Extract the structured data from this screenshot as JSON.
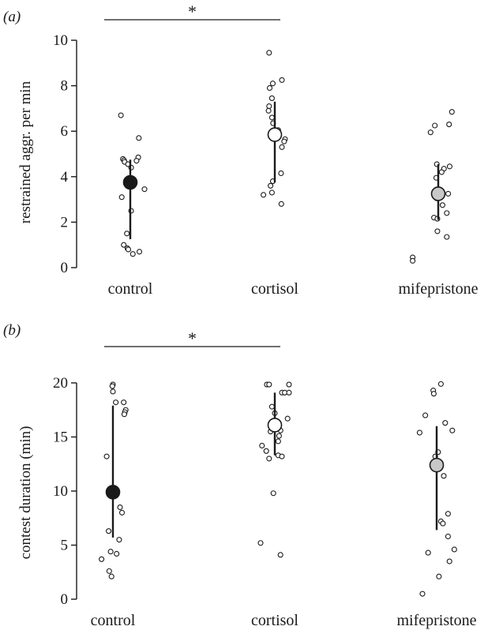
{
  "chart_data": [
    {
      "type": "scatter",
      "panel_label": "(a)",
      "ylabel": "restrained aggr. per min",
      "xlabel": "",
      "categories": [
        "control",
        "cortisol",
        "mifepristone"
      ],
      "y_ticks": [
        0,
        2,
        4,
        6,
        8,
        10
      ],
      "ylim": [
        0,
        10
      ],
      "grid": false,
      "significance": {
        "from": "control",
        "to": "cortisol",
        "label": "*"
      },
      "summary": [
        {
          "category": "control",
          "mean": 3.75,
          "low": 1.25,
          "high": 4.75,
          "fill": "#1a1a1a"
        },
        {
          "category": "cortisol",
          "mean": 5.85,
          "low": 3.75,
          "high": 7.3,
          "fill": "#ffffff"
        },
        {
          "category": "mifepristone",
          "mean": 3.25,
          "low": 2.1,
          "high": 4.55,
          "fill": "#c8c8c8"
        }
      ],
      "points": [
        {
          "category": "control",
          "dx": -0.33,
          "y": 6.7
        },
        {
          "category": "control",
          "dx": 0.3,
          "y": 5.7
        },
        {
          "category": "control",
          "dx": -0.26,
          "y": 4.78
        },
        {
          "category": "control",
          "dx": -0.22,
          "y": 4.72
        },
        {
          "category": "control",
          "dx": -0.2,
          "y": 4.65
        },
        {
          "category": "control",
          "dx": 0.28,
          "y": 4.85
        },
        {
          "category": "control",
          "dx": 0.22,
          "y": 4.7
        },
        {
          "category": "control",
          "dx": -0.08,
          "y": 4.55
        },
        {
          "category": "control",
          "dx": 0.03,
          "y": 4.4
        },
        {
          "category": "control",
          "dx": -0.05,
          "y": 3.85
        },
        {
          "category": "control",
          "dx": 0.5,
          "y": 3.45
        },
        {
          "category": "control",
          "dx": -0.3,
          "y": 3.1
        },
        {
          "category": "control",
          "dx": 0.03,
          "y": 2.5
        },
        {
          "category": "control",
          "dx": -0.12,
          "y": 1.5
        },
        {
          "category": "control",
          "dx": -0.23,
          "y": 1.0
        },
        {
          "category": "control",
          "dx": -0.1,
          "y": 0.85
        },
        {
          "category": "control",
          "dx": -0.07,
          "y": 0.8
        },
        {
          "category": "control",
          "dx": 0.09,
          "y": 0.6
        },
        {
          "category": "control",
          "dx": 0.32,
          "y": 0.7
        },
        {
          "category": "cortisol",
          "dx": -0.2,
          "y": 9.45
        },
        {
          "category": "cortisol",
          "dx": 0.25,
          "y": 8.25
        },
        {
          "category": "cortisol",
          "dx": -0.07,
          "y": 8.1
        },
        {
          "category": "cortisol",
          "dx": -0.18,
          "y": 7.9
        },
        {
          "category": "cortisol",
          "dx": -0.1,
          "y": 7.45
        },
        {
          "category": "cortisol",
          "dx": -0.2,
          "y": 7.1
        },
        {
          "category": "cortisol",
          "dx": -0.22,
          "y": 6.9
        },
        {
          "category": "cortisol",
          "dx": -0.1,
          "y": 6.6
        },
        {
          "category": "cortisol",
          "dx": -0.06,
          "y": 6.35
        },
        {
          "category": "cortisol",
          "dx": 0.12,
          "y": 6.05
        },
        {
          "category": "cortisol",
          "dx": 0.36,
          "y": 5.65
        },
        {
          "category": "cortisol",
          "dx": 0.33,
          "y": 5.55
        },
        {
          "category": "cortisol",
          "dx": 0.25,
          "y": 5.3
        },
        {
          "category": "cortisol",
          "dx": 0.22,
          "y": 4.15
        },
        {
          "category": "cortisol",
          "dx": -0.07,
          "y": 3.8
        },
        {
          "category": "cortisol",
          "dx": -0.15,
          "y": 3.6
        },
        {
          "category": "cortisol",
          "dx": -0.1,
          "y": 3.3
        },
        {
          "category": "cortisol",
          "dx": -0.4,
          "y": 3.2
        },
        {
          "category": "cortisol",
          "dx": 0.23,
          "y": 2.8
        },
        {
          "category": "mifepristone",
          "dx": 0.48,
          "y": 6.85
        },
        {
          "category": "mifepristone",
          "dx": 0.38,
          "y": 6.3
        },
        {
          "category": "mifepristone",
          "dx": -0.12,
          "y": 6.25
        },
        {
          "category": "mifepristone",
          "dx": -0.27,
          "y": 5.95
        },
        {
          "category": "mifepristone",
          "dx": -0.05,
          "y": 4.55
        },
        {
          "category": "mifepristone",
          "dx": 0.4,
          "y": 4.45
        },
        {
          "category": "mifepristone",
          "dx": 0.2,
          "y": 4.35
        },
        {
          "category": "mifepristone",
          "dx": 0.12,
          "y": 4.2
        },
        {
          "category": "mifepristone",
          "dx": -0.07,
          "y": 3.95
        },
        {
          "category": "mifepristone",
          "dx": 0.35,
          "y": 3.25
        },
        {
          "category": "mifepristone",
          "dx": -0.06,
          "y": 3.05
        },
        {
          "category": "mifepristone",
          "dx": 0.15,
          "y": 2.75
        },
        {
          "category": "mifepristone",
          "dx": 0.3,
          "y": 2.4
        },
        {
          "category": "mifepristone",
          "dx": -0.15,
          "y": 2.2
        },
        {
          "category": "mifepristone",
          "dx": -0.03,
          "y": 2.15
        },
        {
          "category": "mifepristone",
          "dx": -0.03,
          "y": 1.6
        },
        {
          "category": "mifepristone",
          "dx": 0.3,
          "y": 1.35
        },
        {
          "category": "mifepristone",
          "dx": -0.9,
          "y": 0.45
        },
        {
          "category": "mifepristone",
          "dx": -0.9,
          "y": 0.3
        }
      ]
    },
    {
      "type": "scatter",
      "panel_label": "(b)",
      "ylabel": "contest duration (min)",
      "xlabel": "",
      "categories": [
        "control",
        "cortisol",
        "mifepristone"
      ],
      "y_ticks": [
        0,
        5,
        10,
        15,
        20
      ],
      "ylim": [
        0,
        20
      ],
      "grid": false,
      "significance": {
        "from": "control",
        "to": "cortisol",
        "label": "*"
      },
      "summary": [
        {
          "category": "control",
          "mean": 9.9,
          "low": 5.7,
          "high": 17.9,
          "fill": "#1a1a1a"
        },
        {
          "category": "cortisol",
          "mean": 16.1,
          "low": 13.3,
          "high": 19.1,
          "fill": "#ffffff"
        },
        {
          "category": "mifepristone",
          "mean": 12.4,
          "low": 6.4,
          "high": 16.0,
          "fill": "#c8c8c8"
        }
      ],
      "points": [
        {
          "category": "control",
          "dx": 0.0,
          "y": 19.85
        },
        {
          "category": "control",
          "dx": -0.02,
          "y": 19.7
        },
        {
          "category": "control",
          "dx": 0.0,
          "y": 19.2
        },
        {
          "category": "control",
          "dx": 0.1,
          "y": 18.2
        },
        {
          "category": "control",
          "dx": 0.38,
          "y": 18.2
        },
        {
          "category": "control",
          "dx": 0.45,
          "y": 17.5
        },
        {
          "category": "control",
          "dx": 0.42,
          "y": 17.3
        },
        {
          "category": "control",
          "dx": 0.4,
          "y": 17.1
        },
        {
          "category": "control",
          "dx": -0.22,
          "y": 13.2
        },
        {
          "category": "control",
          "dx": 0.25,
          "y": 8.5
        },
        {
          "category": "control",
          "dx": 0.32,
          "y": 8.0
        },
        {
          "category": "control",
          "dx": -0.15,
          "y": 6.3
        },
        {
          "category": "control",
          "dx": 0.22,
          "y": 5.5
        },
        {
          "category": "control",
          "dx": -0.08,
          "y": 4.4
        },
        {
          "category": "control",
          "dx": 0.13,
          "y": 4.2
        },
        {
          "category": "control",
          "dx": -0.4,
          "y": 3.7
        },
        {
          "category": "control",
          "dx": -0.13,
          "y": 2.6
        },
        {
          "category": "control",
          "dx": -0.05,
          "y": 2.1
        },
        {
          "category": "cortisol",
          "dx": -0.28,
          "y": 19.85
        },
        {
          "category": "cortisol",
          "dx": -0.2,
          "y": 19.85
        },
        {
          "category": "cortisol",
          "dx": 0.5,
          "y": 19.85
        },
        {
          "category": "cortisol",
          "dx": 0.25,
          "y": 19.1
        },
        {
          "category": "cortisol",
          "dx": 0.35,
          "y": 19.1
        },
        {
          "category": "cortisol",
          "dx": 0.5,
          "y": 19.1
        },
        {
          "category": "cortisol",
          "dx": -0.1,
          "y": 17.8
        },
        {
          "category": "cortisol",
          "dx": 0.0,
          "y": 17.2
        },
        {
          "category": "cortisol",
          "dx": 0.45,
          "y": 16.7
        },
        {
          "category": "cortisol",
          "dx": 0.2,
          "y": 15.6
        },
        {
          "category": "cortisol",
          "dx": -0.15,
          "y": 15.5
        },
        {
          "category": "cortisol",
          "dx": 0.15,
          "y": 15.1
        },
        {
          "category": "cortisol",
          "dx": 0.12,
          "y": 14.6
        },
        {
          "category": "cortisol",
          "dx": -0.45,
          "y": 14.2
        },
        {
          "category": "cortisol",
          "dx": -0.3,
          "y": 13.7
        },
        {
          "category": "cortisol",
          "dx": 0.12,
          "y": 13.3
        },
        {
          "category": "cortisol",
          "dx": 0.25,
          "y": 13.2
        },
        {
          "category": "cortisol",
          "dx": -0.2,
          "y": 13.0
        },
        {
          "category": "cortisol",
          "dx": -0.05,
          "y": 9.8
        },
        {
          "category": "cortisol",
          "dx": -0.5,
          "y": 5.2
        },
        {
          "category": "cortisol",
          "dx": 0.2,
          "y": 4.1
        },
        {
          "category": "mifepristone",
          "dx": 0.15,
          "y": 19.9
        },
        {
          "category": "mifepristone",
          "dx": -0.12,
          "y": 19.3
        },
        {
          "category": "mifepristone",
          "dx": -0.1,
          "y": 19.0
        },
        {
          "category": "mifepristone",
          "dx": -0.4,
          "y": 17.0
        },
        {
          "category": "mifepristone",
          "dx": 0.3,
          "y": 16.3
        },
        {
          "category": "mifepristone",
          "dx": 0.55,
          "y": 15.6
        },
        {
          "category": "mifepristone",
          "dx": -0.6,
          "y": 15.4
        },
        {
          "category": "mifepristone",
          "dx": 0.05,
          "y": 13.6
        },
        {
          "category": "mifepristone",
          "dx": -0.05,
          "y": 13.2
        },
        {
          "category": "mifepristone",
          "dx": 0.0,
          "y": 12.4
        },
        {
          "category": "mifepristone",
          "dx": 0.25,
          "y": 11.4
        },
        {
          "category": "mifepristone",
          "dx": 0.4,
          "y": 7.9
        },
        {
          "category": "mifepristone",
          "dx": 0.15,
          "y": 7.2
        },
        {
          "category": "mifepristone",
          "dx": 0.22,
          "y": 7.0
        },
        {
          "category": "mifepristone",
          "dx": 0.4,
          "y": 5.8
        },
        {
          "category": "mifepristone",
          "dx": 0.62,
          "y": 4.6
        },
        {
          "category": "mifepristone",
          "dx": -0.3,
          "y": 4.3
        },
        {
          "category": "mifepristone",
          "dx": 0.45,
          "y": 3.5
        },
        {
          "category": "mifepristone",
          "dx": 0.08,
          "y": 2.1
        },
        {
          "category": "mifepristone",
          "dx": -0.5,
          "y": 0.5
        }
      ]
    }
  ]
}
